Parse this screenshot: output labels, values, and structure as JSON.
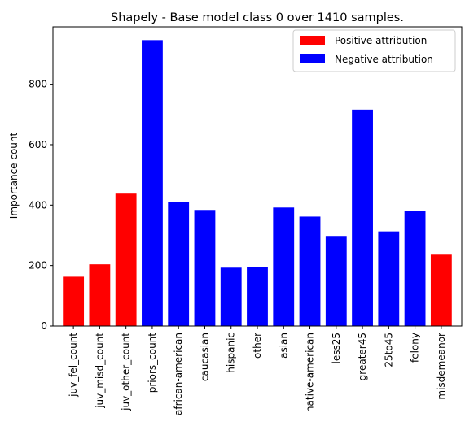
{
  "chart_data": {
    "type": "bar",
    "title": "Shapely - Base model class 0 over 1410 samples.",
    "xlabel": "",
    "ylabel": "Importance count",
    "ylim": [
      0,
      990
    ],
    "yticks": [
      0,
      200,
      400,
      600,
      800
    ],
    "grid": false,
    "legend_position": "top-right",
    "legend": [
      {
        "label": "Positive attribution",
        "color": "#ff0000"
      },
      {
        "label": "Negative attribution",
        "color": "#0000ff"
      }
    ],
    "categories": [
      "juv_fel_count",
      "juv_misd_count",
      "juv_other_count",
      "priors_count",
      "african-american",
      "caucasian",
      "hispanic",
      "other",
      "asian",
      "native-american",
      "less25",
      "greater45",
      "25to45",
      "felony",
      "misdemeanor"
    ],
    "values": [
      163,
      204,
      438,
      946,
      411,
      384,
      193,
      195,
      392,
      362,
      298,
      716,
      313,
      381,
      236
    ],
    "colors": [
      "#ff0000",
      "#ff0000",
      "#ff0000",
      "#0000ff",
      "#0000ff",
      "#0000ff",
      "#0000ff",
      "#0000ff",
      "#0000ff",
      "#0000ff",
      "#0000ff",
      "#0000ff",
      "#0000ff",
      "#0000ff",
      "#ff0000"
    ]
  }
}
